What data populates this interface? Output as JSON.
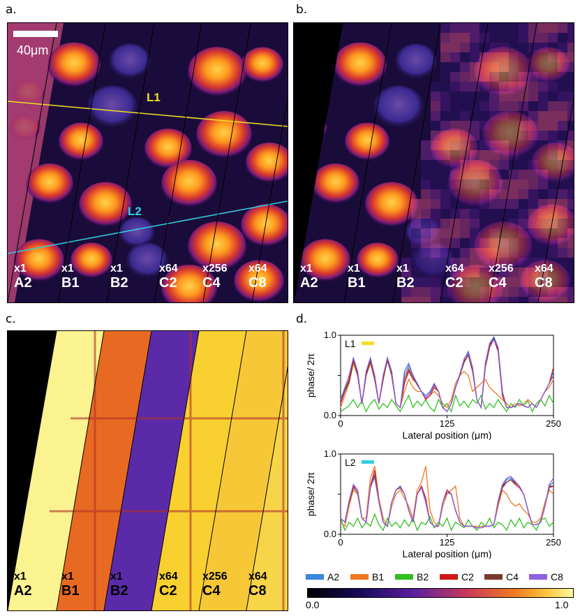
{
  "panels": {
    "a": {
      "label": "a."
    },
    "b": {
      "label": "b."
    },
    "c": {
      "label": "c."
    },
    "d": {
      "label": "d."
    }
  },
  "scale_bar": {
    "text": "40μm"
  },
  "line_labels": {
    "l1": "L1",
    "l2": "L2"
  },
  "tiles": [
    {
      "mult": "x1",
      "name": "A2"
    },
    {
      "mult": "x1",
      "name": "B1"
    },
    {
      "mult": "x1",
      "name": "B2"
    },
    {
      "mult": "x64",
      "name": "C2"
    },
    {
      "mult": "x256",
      "name": "C4"
    },
    {
      "mult": "x64",
      "name": "C8"
    }
  ],
  "colors": {
    "A2": "#3a86e0",
    "B1": "#f07820",
    "B2": "#30c020",
    "C2": "#d01818",
    "C4": "#7a3a30",
    "C8": "#9060e0",
    "L1": "#f0e020",
    "L2": "#30d0e0"
  },
  "legend": {
    "entries": [
      "A2",
      "B1",
      "B2",
      "C2",
      "C4",
      "C8"
    ]
  },
  "colorbar": {
    "min": "0.0",
    "max": "1.0"
  },
  "chart_data": [
    {
      "type": "line",
      "id": "L1",
      "title": "L1",
      "xlabel": "Lateral position (μm)",
      "ylabel": "phase/ 2π",
      "xlim": [
        0,
        250
      ],
      "ylim": [
        0,
        1.0
      ],
      "xticks": [
        "0",
        "125",
        "250"
      ],
      "yticks": [
        "0.0",
        "0.5",
        "1.0"
      ],
      "x": [
        0,
        10,
        15,
        20,
        25,
        30,
        35,
        40,
        45,
        50,
        55,
        60,
        65,
        70,
        75,
        80,
        85,
        90,
        95,
        100,
        105,
        110,
        115,
        120,
        125,
        130,
        135,
        140,
        145,
        150,
        155,
        160,
        165,
        170,
        175,
        180,
        185,
        190,
        195,
        200,
        205,
        210,
        215,
        220,
        225,
        230,
        235,
        240,
        245,
        250
      ],
      "series": [
        {
          "name": "A2",
          "values": [
            0.2,
            0.45,
            0.7,
            0.55,
            0.15,
            0.55,
            0.7,
            0.5,
            0.15,
            0.5,
            0.72,
            0.55,
            0.15,
            0.1,
            0.55,
            0.65,
            0.5,
            0.4,
            0.3,
            0.25,
            0.3,
            0.4,
            0.3,
            0.1,
            0.05,
            0.15,
            0.35,
            0.5,
            0.7,
            0.8,
            0.6,
            0.2,
            0.1,
            0.65,
            0.9,
            0.98,
            0.85,
            0.3,
            0.1,
            0.1,
            0.12,
            0.15,
            0.12,
            0.1,
            0.15,
            0.1,
            0.2,
            0.3,
            0.4,
            0.55
          ]
        },
        {
          "name": "B1",
          "values": [
            0.1,
            0.4,
            0.65,
            0.5,
            0.15,
            0.5,
            0.65,
            0.45,
            0.15,
            0.45,
            0.7,
            0.5,
            0.15,
            0.1,
            0.3,
            0.45,
            0.35,
            0.3,
            0.3,
            0.2,
            0.25,
            0.3,
            0.25,
            0.15,
            0.1,
            0.2,
            0.4,
            0.5,
            0.55,
            0.5,
            0.3,
            0.35,
            0.4,
            0.45,
            0.35,
            0.3,
            0.25,
            0.2,
            0.15,
            0.1,
            0.15,
            0.12,
            0.15,
            0.2,
            0.15,
            0.1,
            0.2,
            0.3,
            0.35,
            0.45
          ]
        },
        {
          "name": "B2",
          "values": [
            0.05,
            0.12,
            0.2,
            0.1,
            0.18,
            0.05,
            0.15,
            0.2,
            0.08,
            0.15,
            0.1,
            0.2,
            0.12,
            0.05,
            0.15,
            0.25,
            0.1,
            0.18,
            0.12,
            0.2,
            0.1,
            0.05,
            0.2,
            0.1,
            0.15,
            0.05,
            0.25,
            0.12,
            0.18,
            0.1,
            0.2,
            0.15,
            0.25,
            0.08,
            0.15,
            0.1,
            0.2,
            0.12,
            0.05,
            0.15,
            0.1,
            0.2,
            0.12,
            0.18,
            0.05,
            0.15,
            0.2,
            0.12,
            0.25,
            0.15
          ]
        },
        {
          "name": "C2",
          "values": [
            0.15,
            0.45,
            0.7,
            0.5,
            0.15,
            0.5,
            0.68,
            0.45,
            0.15,
            0.45,
            0.7,
            0.5,
            0.15,
            0.1,
            0.4,
            0.55,
            0.45,
            0.4,
            0.3,
            0.2,
            0.25,
            0.35,
            0.3,
            0.1,
            0.05,
            0.15,
            0.35,
            0.5,
            0.68,
            0.75,
            0.55,
            0.2,
            0.1,
            0.6,
            0.85,
            0.95,
            0.8,
            0.25,
            0.1,
            0.1,
            0.12,
            0.15,
            0.12,
            0.1,
            0.15,
            0.1,
            0.2,
            0.3,
            0.4,
            0.6
          ]
        },
        {
          "name": "C4",
          "values": [
            0.18,
            0.42,
            0.68,
            0.52,
            0.15,
            0.52,
            0.68,
            0.48,
            0.15,
            0.48,
            0.68,
            0.52,
            0.15,
            0.1,
            0.45,
            0.58,
            0.48,
            0.38,
            0.3,
            0.22,
            0.28,
            0.38,
            0.3,
            0.1,
            0.05,
            0.15,
            0.35,
            0.5,
            0.66,
            0.76,
            0.58,
            0.2,
            0.1,
            0.62,
            0.88,
            0.96,
            0.82,
            0.28,
            0.1,
            0.1,
            0.12,
            0.15,
            0.12,
            0.1,
            0.15,
            0.1,
            0.2,
            0.3,
            0.4,
            0.5
          ]
        },
        {
          "name": "C8",
          "values": [
            0.2,
            0.5,
            0.72,
            0.55,
            0.15,
            0.55,
            0.72,
            0.5,
            0.15,
            0.5,
            0.72,
            0.55,
            0.15,
            0.1,
            0.5,
            0.62,
            0.5,
            0.4,
            0.3,
            0.22,
            0.28,
            0.4,
            0.3,
            0.1,
            0.05,
            0.15,
            0.35,
            0.52,
            0.7,
            0.78,
            0.6,
            0.2,
            0.1,
            0.65,
            0.9,
            0.94,
            0.85,
            0.3,
            0.1,
            0.1,
            0.12,
            0.15,
            0.12,
            0.1,
            0.15,
            0.1,
            0.2,
            0.3,
            0.4,
            0.5
          ]
        }
      ]
    },
    {
      "type": "line",
      "id": "L2",
      "title": "L2",
      "xlabel": "Lateral position (μm)",
      "ylabel": "phase/ 2π",
      "xlim": [
        0,
        250
      ],
      "ylim": [
        0,
        1.0
      ],
      "xticks": [
        "0",
        "125",
        "250"
      ],
      "yticks": [
        "0.0",
        "0.5",
        "1.0"
      ],
      "x": [
        0,
        5,
        10,
        15,
        20,
        25,
        30,
        35,
        40,
        45,
        50,
        55,
        60,
        65,
        70,
        75,
        80,
        85,
        90,
        95,
        100,
        105,
        110,
        115,
        120,
        125,
        130,
        135,
        140,
        145,
        150,
        155,
        160,
        165,
        170,
        175,
        180,
        185,
        190,
        195,
        200,
        205,
        210,
        215,
        220,
        225,
        230,
        235,
        240,
        245,
        250
      ],
      "series": [
        {
          "name": "A2",
          "values": [
            0.2,
            0.15,
            0.4,
            0.6,
            0.55,
            0.2,
            0.15,
            0.6,
            0.75,
            0.4,
            0.15,
            0.1,
            0.4,
            0.55,
            0.6,
            0.5,
            0.3,
            0.15,
            0.5,
            0.6,
            0.4,
            0.15,
            0.1,
            0.1,
            0.4,
            0.55,
            0.5,
            0.3,
            0.15,
            0.1,
            0.1,
            0.1,
            0.08,
            0.08,
            0.1,
            0.1,
            0.12,
            0.4,
            0.6,
            0.68,
            0.7,
            0.65,
            0.6,
            0.5,
            0.3,
            0.12,
            0.12,
            0.15,
            0.35,
            0.6,
            0.65
          ]
        },
        {
          "name": "B1",
          "values": [
            0.15,
            0.1,
            0.35,
            0.55,
            0.5,
            0.2,
            0.2,
            0.7,
            0.85,
            0.45,
            0.2,
            0.1,
            0.35,
            0.5,
            0.55,
            0.45,
            0.35,
            0.2,
            0.55,
            0.65,
            0.85,
            0.3,
            0.15,
            0.1,
            0.35,
            0.5,
            0.55,
            0.6,
            0.2,
            0.1,
            0.1,
            0.1,
            0.1,
            0.1,
            0.1,
            0.1,
            0.12,
            0.35,
            0.55,
            0.5,
            0.4,
            0.35,
            0.38,
            0.3,
            0.25,
            0.15,
            0.15,
            0.2,
            0.4,
            0.55,
            0.5
          ]
        },
        {
          "name": "B2",
          "values": [
            0.2,
            0.05,
            0.15,
            0.1,
            0.2,
            0.08,
            0.15,
            0.1,
            0.25,
            0.12,
            0.05,
            0.2,
            0.1,
            0.15,
            0.08,
            0.18,
            0.1,
            0.2,
            0.05,
            0.15,
            0.12,
            0.22,
            0.08,
            0.15,
            0.1,
            0.2,
            0.05,
            0.15,
            0.12,
            0.08,
            0.18,
            0.1,
            0.05,
            0.15,
            0.1,
            0.2,
            0.08,
            0.15,
            0.12,
            0.05,
            0.18,
            0.1,
            0.2,
            0.08,
            0.15,
            0.12,
            0.05,
            0.18,
            0.2,
            0.1,
            0.15
          ]
        },
        {
          "name": "C2",
          "values": [
            0.2,
            0.15,
            0.4,
            0.6,
            0.55,
            0.2,
            0.15,
            0.6,
            0.8,
            0.4,
            0.15,
            0.1,
            0.4,
            0.55,
            0.6,
            0.5,
            0.3,
            0.15,
            0.5,
            0.6,
            0.45,
            0.15,
            0.1,
            0.1,
            0.4,
            0.55,
            0.5,
            0.3,
            0.15,
            0.1,
            0.1,
            0.1,
            0.08,
            0.08,
            0.1,
            0.1,
            0.12,
            0.4,
            0.6,
            0.65,
            0.68,
            0.62,
            0.58,
            0.5,
            0.3,
            0.12,
            0.12,
            0.15,
            0.35,
            0.6,
            0.6
          ]
        },
        {
          "name": "C4",
          "values": [
            0.2,
            0.15,
            0.4,
            0.58,
            0.52,
            0.2,
            0.15,
            0.58,
            0.72,
            0.4,
            0.15,
            0.1,
            0.4,
            0.55,
            0.58,
            0.5,
            0.3,
            0.15,
            0.5,
            0.58,
            0.4,
            0.15,
            0.1,
            0.1,
            0.4,
            0.52,
            0.5,
            0.3,
            0.15,
            0.1,
            0.1,
            0.1,
            0.08,
            0.08,
            0.1,
            0.1,
            0.12,
            0.4,
            0.58,
            0.65,
            0.68,
            0.64,
            0.6,
            0.5,
            0.3,
            0.12,
            0.12,
            0.15,
            0.35,
            0.58,
            0.6
          ]
        },
        {
          "name": "C8",
          "values": [
            0.2,
            0.15,
            0.42,
            0.62,
            0.55,
            0.2,
            0.15,
            0.6,
            0.7,
            0.4,
            0.15,
            0.1,
            0.4,
            0.55,
            0.6,
            0.5,
            0.3,
            0.15,
            0.5,
            0.58,
            0.4,
            0.15,
            0.1,
            0.1,
            0.4,
            0.52,
            0.5,
            0.3,
            0.15,
            0.1,
            0.1,
            0.1,
            0.08,
            0.08,
            0.1,
            0.1,
            0.12,
            0.42,
            0.62,
            0.7,
            0.72,
            0.66,
            0.6,
            0.5,
            0.3,
            0.12,
            0.12,
            0.15,
            0.35,
            0.62,
            0.7
          ]
        }
      ]
    }
  ]
}
